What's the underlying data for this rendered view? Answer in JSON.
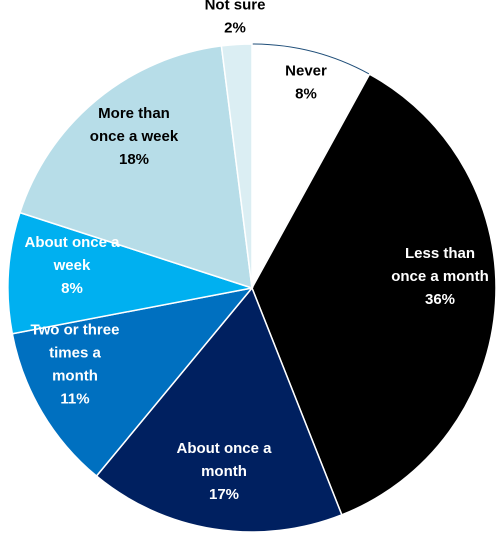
{
  "chart_data": {
    "type": "pie",
    "start": "12 o'clock",
    "direction": "clockwise",
    "slices": [
      {
        "label": [
          "Never"
        ],
        "value": 8,
        "value_label": "8%",
        "color": "#ffffff",
        "text_color": "#000000",
        "stroke": "#1f4e79"
      },
      {
        "label": [
          "Less than",
          "once a month"
        ],
        "value": 36,
        "value_label": "36%",
        "color": "#000000",
        "text_color": "#ffffff",
        "stroke": "#ffffff"
      },
      {
        "label": [
          "About once a",
          "month"
        ],
        "value": 17,
        "value_label": "17%",
        "color": "#002060",
        "text_color": "#ffffff",
        "stroke": "#ffffff"
      },
      {
        "label": [
          "Two or three",
          "times a",
          "month"
        ],
        "value": 11,
        "value_label": "11%",
        "color": "#0070c0",
        "text_color": "#ffffff",
        "stroke": "#ffffff"
      },
      {
        "label": [
          "About once a",
          "week"
        ],
        "value": 8,
        "value_label": "8%",
        "color": "#00b0f0",
        "text_color": "#ffffff",
        "stroke": "#ffffff"
      },
      {
        "label": [
          "More than",
          "once a week"
        ],
        "value": 18,
        "value_label": "18%",
        "color": "#b7dde8",
        "text_color": "#000000",
        "stroke": "#ffffff"
      },
      {
        "label": [
          "Not sure"
        ],
        "value": 2,
        "value_label": "2%",
        "color": "#dbeef3",
        "text_color": "#000000",
        "stroke": "#ffffff"
      }
    ]
  }
}
